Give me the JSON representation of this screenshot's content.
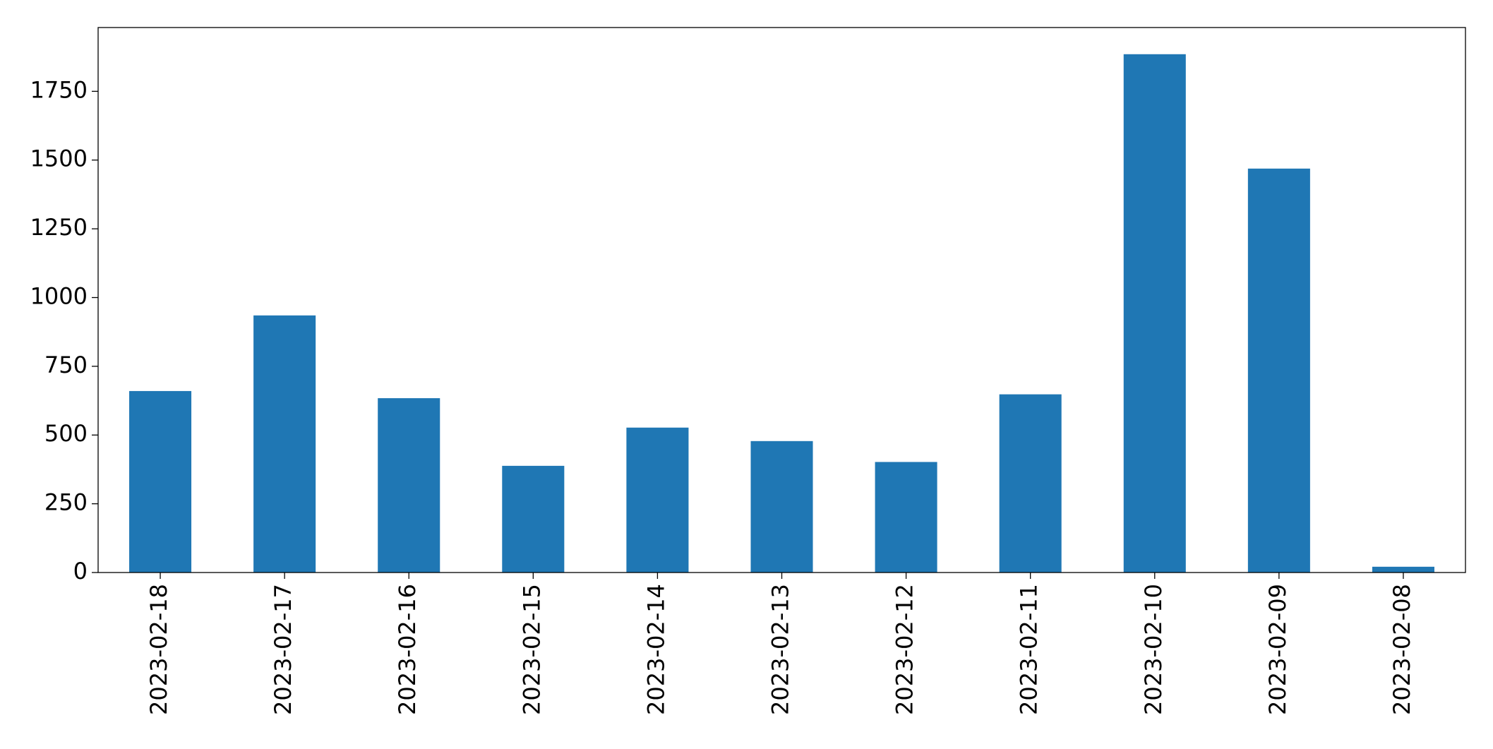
{
  "chart_data": {
    "type": "bar",
    "categories": [
      "2023-02-18",
      "2023-02-17",
      "2023-02-16",
      "2023-02-15",
      "2023-02-14",
      "2023-02-13",
      "2023-02-12",
      "2023-02-11",
      "2023-02-10",
      "2023-02-09",
      "2023-02-08"
    ],
    "values": [
      660,
      935,
      634,
      388,
      527,
      478,
      402,
      648,
      1885,
      1469,
      21
    ],
    "color": "#1f77b4",
    "ylim": [
      0,
      1982
    ],
    "yticks": [
      0,
      250,
      500,
      750,
      1000,
      1250,
      1500,
      1750
    ],
    "grid": false
  }
}
